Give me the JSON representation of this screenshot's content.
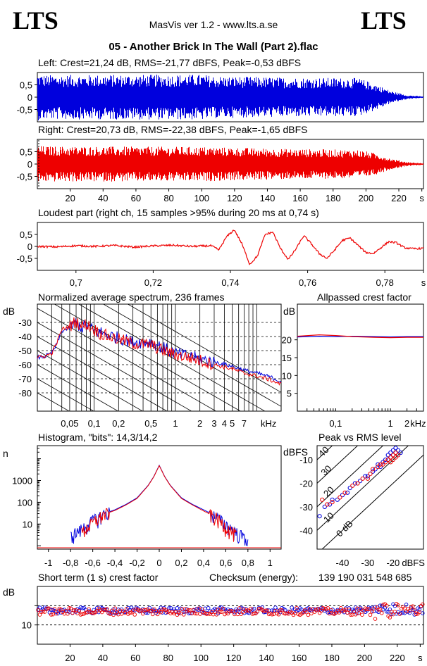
{
  "header": {
    "logo_left": "LTS",
    "logo_right": "LTS",
    "app_title": "MasVis ver 1.2 - www.lts.a.se",
    "file_title": "05 - Another Brick In The Wall (Part 2).flac"
  },
  "checksum": {
    "label": "Checksum (energy):",
    "value": "139 190 031 548 685"
  },
  "colors": {
    "left": "#0000dd",
    "right": "#ee0000",
    "axis": "#000000"
  },
  "chart_data": [
    {
      "id": "left-waveform",
      "type": "area",
      "title": "Left: Crest=21,24 dB, RMS=-21,77 dBFS, Peak=-0,53 dBFS",
      "ylim": [
        -1,
        1
      ],
      "yticks": [
        "0,5",
        "0",
        "-0,5"
      ],
      "ytick_values": [
        0.5,
        0,
        -0.5
      ],
      "xlim": [
        0,
        235
      ],
      "envelope": {
        "x": [
          0,
          5,
          100,
          110,
          150,
          195,
          205,
          215,
          225,
          235
        ],
        "peak": [
          0.95,
          0.9,
          0.92,
          0.85,
          0.8,
          0.78,
          0.55,
          0.25,
          0.08,
          0.03
        ]
      }
    },
    {
      "id": "right-waveform",
      "type": "area",
      "title": "Right: Crest=20,73 dB, RMS=-22,38 dBFS, Peak=-1,65 dBFS",
      "ylim": [
        -1,
        1
      ],
      "yticks": [
        "0,5",
        "0",
        "-0,5"
      ],
      "ytick_values": [
        0.5,
        0,
        -0.5
      ],
      "xlim": [
        0,
        235
      ],
      "xticks": [
        "20",
        "40",
        "60",
        "80",
        "100",
        "120",
        "140",
        "160",
        "180",
        "200",
        "220",
        "s"
      ],
      "xtick_values": [
        20,
        40,
        60,
        80,
        100,
        120,
        140,
        160,
        180,
        200,
        220,
        234
      ],
      "envelope": {
        "x": [
          0,
          5,
          100,
          150,
          195,
          205,
          215,
          225,
          235
        ],
        "peak": [
          0.75,
          0.72,
          0.7,
          0.62,
          0.58,
          0.45,
          0.22,
          0.08,
          0.03
        ]
      }
    },
    {
      "id": "loudest-part",
      "type": "line",
      "title": "Loudest part (right ch, 15 samples >95% during 20 ms at 0,74 s)",
      "xlim": [
        0.69,
        0.79
      ],
      "ylim": [
        -1,
        1
      ],
      "xticks": [
        "0,7",
        "0,72",
        "0,74",
        "0,76",
        "0,78",
        "s"
      ],
      "xtick_values": [
        0.7,
        0.72,
        0.74,
        0.76,
        0.78,
        0.79
      ],
      "yticks": [
        "0,5",
        "0",
        "-0,5"
      ],
      "ytick_values": [
        0.5,
        0,
        -0.5
      ],
      "x": [
        0.69,
        0.695,
        0.7,
        0.705,
        0.71,
        0.715,
        0.72,
        0.725,
        0.73,
        0.735,
        0.737,
        0.739,
        0.741,
        0.743,
        0.745,
        0.747,
        0.749,
        0.751,
        0.753,
        0.755,
        0.757,
        0.759,
        0.761,
        0.763,
        0.765,
        0.767,
        0.769,
        0.771,
        0.773,
        0.775,
        0.777,
        0.779,
        0.781,
        0.783,
        0.785,
        0.787,
        0.79
      ],
      "y": [
        0.0,
        -0.02,
        0.03,
        0.0,
        0.04,
        -0.03,
        0.02,
        0.05,
        0.0,
        0.03,
        -0.15,
        0.4,
        0.7,
        0.1,
        -0.75,
        -0.4,
        0.5,
        0.6,
        -0.1,
        -0.55,
        -0.1,
        0.45,
        0.1,
        -0.3,
        -0.5,
        -0.15,
        0.25,
        0.35,
        0.05,
        -0.25,
        -0.3,
        -0.05,
        0.2,
        0.15,
        -0.05,
        -0.1,
        -0.08
      ]
    },
    {
      "id": "spectrum",
      "type": "line",
      "title": "Normalized average spectrum, 236 frames",
      "ylabel": "dB",
      "xlabel": "kHz",
      "xscale": "log",
      "xlim": [
        0.02,
        20
      ],
      "ylim": [
        -93,
        -17
      ],
      "yticks": [
        "-30",
        "-40",
        "-50",
        "-60",
        "-70",
        "-80"
      ],
      "ytick_values": [
        -30,
        -40,
        -50,
        -60,
        -70,
        -80
      ],
      "xticks": [
        "0,05",
        "0,1",
        "0,2",
        "0,5",
        "1",
        "2",
        "3",
        "4",
        "5",
        "7",
        "kHz"
      ],
      "xtick_values": [
        0.05,
        0.1,
        0.2,
        0.5,
        1,
        2,
        3,
        4,
        5,
        7,
        14
      ],
      "series": [
        {
          "color": "#0000dd",
          "x": [
            0.02,
            0.025,
            0.03,
            0.035,
            0.04,
            0.05,
            0.06,
            0.07,
            0.08,
            0.1,
            0.12,
            0.15,
            0.2,
            0.3,
            0.5,
            0.7,
            1,
            1.5,
            2,
            3,
            5,
            7,
            10,
            15,
            20
          ],
          "values": [
            -55,
            -54,
            -52,
            -45,
            -36,
            -34,
            -30,
            -34,
            -32,
            -36,
            -37,
            -39,
            -41,
            -44,
            -44,
            -48,
            -52,
            -54,
            -56,
            -58,
            -61,
            -64,
            -66,
            -69,
            -72
          ]
        },
        {
          "color": "#ee0000",
          "x": [
            0.02,
            0.025,
            0.03,
            0.035,
            0.04,
            0.05,
            0.06,
            0.07,
            0.08,
            0.1,
            0.12,
            0.15,
            0.2,
            0.3,
            0.5,
            0.7,
            1,
            1.5,
            2,
            3,
            5,
            7,
            10,
            15,
            20
          ],
          "values": [
            -55,
            -54,
            -52,
            -44,
            -35,
            -33,
            -29,
            -33,
            -31,
            -35,
            -38,
            -40,
            -42,
            -45,
            -46,
            -50,
            -53,
            -55,
            -57,
            -60,
            -63,
            -66,
            -68,
            -71,
            -74
          ]
        }
      ]
    },
    {
      "id": "allpassed-crest",
      "type": "line",
      "title": "Allpassed crest factor",
      "ylabel": "dB",
      "xlabel": "kHz",
      "xscale": "log",
      "xlim": [
        0.02,
        4
      ],
      "ylim": [
        0,
        30
      ],
      "yticks": [
        "20",
        "15",
        "10",
        "5"
      ],
      "ytick_values": [
        20,
        15,
        10,
        5
      ],
      "xticks": [
        "0,1",
        "1",
        "2",
        "kHz"
      ],
      "xtick_values": [
        0.1,
        1,
        2,
        3.2
      ],
      "series": [
        {
          "color": "#0000dd",
          "x": [
            0.02,
            0.05,
            0.1,
            0.2,
            0.5,
            1,
            2,
            4
          ],
          "values": [
            20.8,
            21.0,
            20.9,
            21.0,
            20.9,
            20.8,
            20.9,
            20.9
          ]
        },
        {
          "color": "#ee0000",
          "x": [
            0.02,
            0.05,
            0.1,
            0.2,
            0.5,
            1,
            2,
            4
          ],
          "values": [
            21.0,
            21.4,
            21.2,
            20.9,
            20.7,
            20.6,
            20.7,
            20.7
          ]
        }
      ]
    },
    {
      "id": "histogram",
      "type": "line",
      "title": "Histogram, \"bits\": 14,3/14,2",
      "ylabel": "n",
      "yscale": "log",
      "xlim": [
        -1.1,
        1.1
      ],
      "ylim": [
        0.7,
        40000
      ],
      "yticks": [
        "1000",
        "100",
        "10"
      ],
      "ytick_values": [
        1000,
        100,
        10
      ],
      "xticks": [
        "-1",
        "-0,8",
        "-0,6",
        "-0,4",
        "-0,2",
        "0",
        "0,2",
        "0,4",
        "0,6",
        "0,8",
        "1"
      ],
      "xtick_values": [
        -1,
        -0.8,
        -0.6,
        -0.4,
        -0.2,
        0,
        0.2,
        0.4,
        0.6,
        0.8,
        1
      ],
      "series": [
        {
          "color": "#0000dd",
          "x": [
            -0.8,
            -0.7,
            -0.6,
            -0.5,
            -0.4,
            -0.3,
            -0.2,
            -0.1,
            -0.05,
            0,
            0.05,
            0.1,
            0.2,
            0.3,
            0.4,
            0.5,
            0.6,
            0.7,
            0.8
          ],
          "values": [
            3,
            6,
            15,
            30,
            45,
            80,
            160,
            600,
            1500,
            5000,
            1500,
            600,
            160,
            80,
            45,
            25,
            10,
            4,
            2
          ]
        },
        {
          "color": "#ee0000",
          "x": [
            -0.7,
            -0.6,
            -0.5,
            -0.4,
            -0.3,
            -0.2,
            -0.1,
            -0.05,
            0,
            0.05,
            0.1,
            0.2,
            0.3,
            0.4,
            0.5,
            0.6,
            0.7
          ],
          "values": [
            4,
            12,
            28,
            42,
            75,
            150,
            580,
            1450,
            4800,
            1450,
            580,
            150,
            75,
            40,
            22,
            8,
            3
          ]
        }
      ]
    },
    {
      "id": "peak-vs-rms",
      "type": "scatter",
      "title": "Peak vs RMS level",
      "ylabel": "dBFS",
      "xlabel": "dBFS",
      "xlim": [
        -50,
        -8
      ],
      "ylim": [
        -48,
        -4
      ],
      "xticks": [
        "-40",
        "-30",
        "-20",
        "dBFS"
      ],
      "xtick_values": [
        -40,
        -30,
        -20,
        -12
      ],
      "yticks": [
        "-10",
        "-20",
        "-30",
        "-40"
      ],
      "ytick_values": [
        -10,
        -20,
        -30,
        -40
      ],
      "diagonals": [
        "40",
        "30",
        "20",
        "10",
        "0 dB"
      ],
      "series": [
        {
          "color": "#0000dd",
          "x": [
            -49,
            -47,
            -45,
            -44,
            -42,
            -40,
            -38,
            -37,
            -35,
            -33,
            -31,
            -30,
            -28,
            -27,
            -26,
            -25,
            -24,
            -23,
            -22,
            -22,
            -21,
            -21,
            -20,
            -20,
            -19,
            -19,
            -18,
            -18,
            -17
          ],
          "values": [
            -34,
            -30,
            -29,
            -27,
            -27,
            -25,
            -24,
            -22,
            -20,
            -19,
            -17,
            -17,
            -15,
            -14,
            -12,
            -13,
            -11,
            -10,
            -10,
            -8,
            -9,
            -7,
            -8,
            -6,
            -7,
            -5,
            -6,
            -8,
            -7
          ]
        },
        {
          "color": "#ee0000",
          "x": [
            -48,
            -46,
            -44,
            -41,
            -39,
            -36,
            -34,
            -32,
            -30,
            -29,
            -28,
            -26,
            -25,
            -24,
            -23,
            -22,
            -21,
            -21,
            -20,
            -20,
            -19,
            -19,
            -18
          ],
          "values": [
            -27,
            -29,
            -28,
            -26,
            -24,
            -21,
            -20,
            -18,
            -18,
            -16,
            -14,
            -13,
            -12,
            -12,
            -11,
            -10,
            -9,
            -11,
            -8,
            -10,
            -9,
            -7,
            -8
          ]
        }
      ]
    },
    {
      "id": "short-term-crest",
      "type": "scatter",
      "title": "Short term (1 s) crest factor",
      "ylabel": "dB",
      "xlim": [
        0,
        236
      ],
      "ylim": [
        0,
        30
      ],
      "yticks": [
        "10"
      ],
      "ytick_values": [
        10
      ],
      "dashed_lines": [
        20,
        10
      ],
      "xticks": [
        "20",
        "40",
        "60",
        "80",
        "100",
        "120",
        "140",
        "160",
        "180",
        "200",
        "220",
        "s"
      ],
      "xtick_values": [
        20,
        40,
        60,
        80,
        100,
        120,
        140,
        160,
        180,
        200,
        220,
        234
      ],
      "series": [
        {
          "color": "#0000dd",
          "mean": 17.5,
          "spread": 1.6,
          "count": 236
        },
        {
          "color": "#ee0000",
          "mean": 17.0,
          "spread": 1.8,
          "count": 236
        }
      ]
    }
  ]
}
